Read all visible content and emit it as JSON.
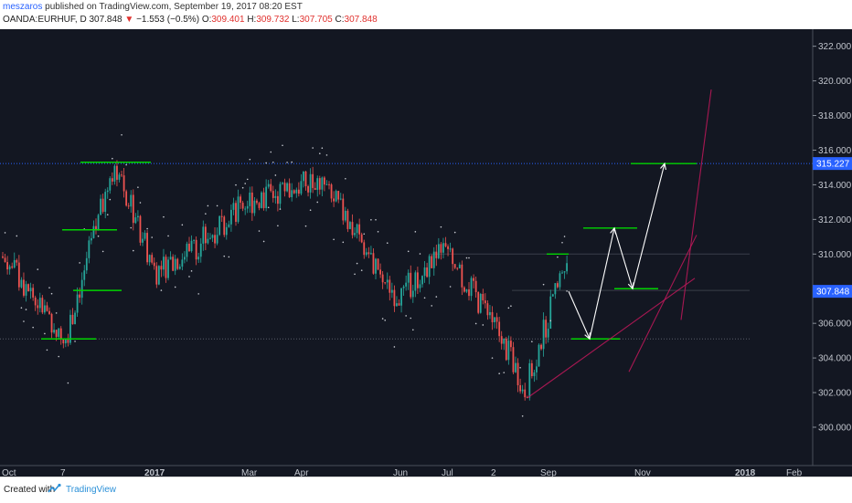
{
  "header": {
    "author": "meszaros",
    "published_text": " published on TradingView.com, September 19, 2017 08:20 EST",
    "symbol": "OANDA:EURHUF, D",
    "last": "307.848",
    "change": "−1.553 (−0.5%)",
    "open_label": "O:",
    "open": "309.401",
    "high_label": "H:",
    "high": "309.732",
    "low_label": "L:",
    "low": "307.705",
    "close_label": "C:",
    "close": "307.848"
  },
  "footer": {
    "created_label": "Created with",
    "brand": "TradingView"
  },
  "colors": {
    "background": "#131722",
    "up": "#26a69a",
    "down": "#ef5350",
    "level_line": "#00d400",
    "projection": "#ffffff",
    "trendline": "#c2185b",
    "price_line": "#2962ff"
  },
  "chart_data": {
    "type": "candlestick",
    "symbol": "OANDA:EURHUF",
    "interval": "D",
    "x_ticks": [
      "Oct",
      "7",
      "2017",
      "Mar",
      "Apr",
      "Jun",
      "Jul",
      "2",
      "Sep",
      "Nov",
      "2018",
      "Feb"
    ],
    "y_ticks": [
      "300.000",
      "302.000",
      "304.000",
      "306.000",
      "308.000",
      "310.000",
      "312.000",
      "314.000",
      "316.000",
      "318.000",
      "320.000",
      "322.000"
    ],
    "ylim": [
      298.6,
      323.3
    ],
    "price_markers": [
      {
        "label": "315.227",
        "value": 315.227
      },
      {
        "label": "307.848",
        "value": 307.848
      }
    ],
    "close_path": [
      {
        "x": "Oct",
        "y": 310.0
      },
      {
        "x": "7",
        "y": 305.2
      },
      {
        "x": "Dec",
        "y": 315.3
      },
      {
        "x": "2017",
        "y": 309.0
      },
      {
        "x": "Feb",
        "y": 310.5
      },
      {
        "x": "Mar",
        "y": 313.0
      },
      {
        "x": "Apr",
        "y": 314.3
      },
      {
        "x": "May",
        "y": 307.5
      },
      {
        "x": "Jun",
        "y": 310.2
      },
      {
        "x": "Jul",
        "y": 306.0
      },
      {
        "x": "Aug",
        "y": 302.2
      },
      {
        "x": "Sep",
        "y": 309.8
      },
      {
        "x": "Sep 19",
        "y": 307.848
      }
    ],
    "levels": [
      315.227,
      315.3,
      311.4,
      307.9,
      305.1,
      310.0,
      311.5,
      308.0,
      305.1
    ],
    "projection_path": [
      307.848,
      305.1,
      311.5,
      308.0,
      315.227
    ],
    "legend": "none",
    "grid": false
  }
}
